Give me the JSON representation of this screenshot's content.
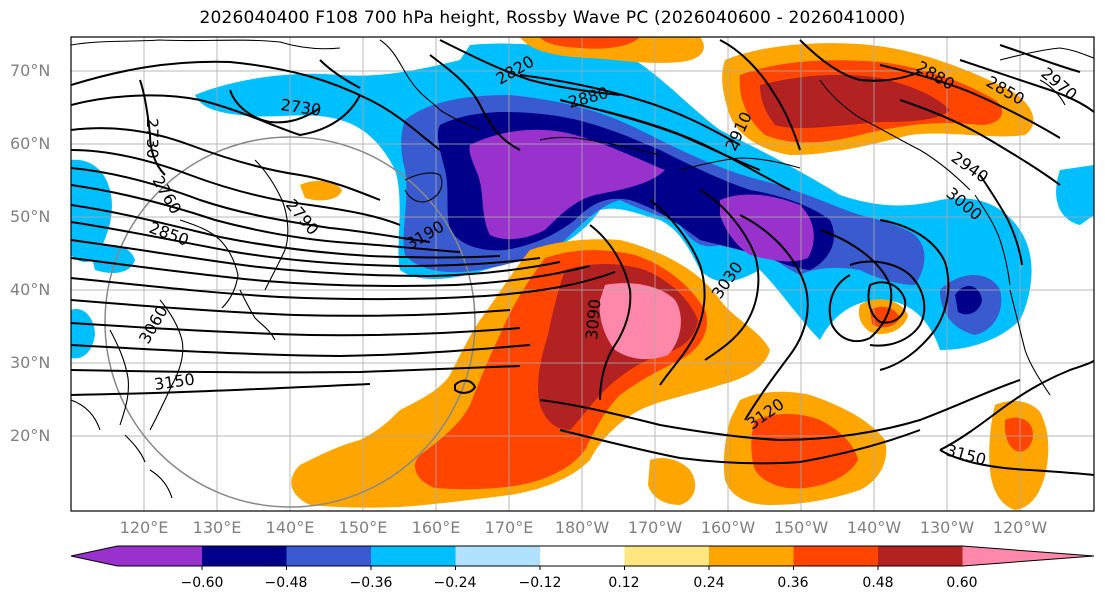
{
  "title": "2026040400 F108 700 hPa height, Rossby Wave PC (2026040600 - 2026041000)",
  "lat_labels": [
    "70°N",
    "60°N",
    "50°N",
    "40°N",
    "30°N",
    "20°N"
  ],
  "lon_labels": [
    "120°E",
    "130°E",
    "140°E",
    "150°E",
    "160°E",
    "170°E",
    "180°W",
    "170°W",
    "160°W",
    "150°W",
    "140°W",
    "130°W",
    "120°W"
  ],
  "contour_labels": [
    "2730",
    "2730",
    "2760",
    "2790",
    "2850",
    "2820",
    "2880",
    "2910",
    "2880",
    "2850",
    "2970",
    "2940",
    "3000",
    "3060",
    "3150",
    "3090",
    "3030",
    "3120",
    "3150",
    "3190"
  ],
  "colorbar": {
    "ticks": [
      "−0.60",
      "−0.48",
      "−0.36",
      "−0.24",
      "−0.12",
      "0.12",
      "0.24",
      "0.36",
      "0.48",
      "0.60"
    ],
    "colors": [
      "#9932cc",
      "#00008b",
      "#3a5bcf",
      "#00bfff",
      "#b0e2ff",
      "#ffffff",
      "#ffe680",
      "#ffa500",
      "#ff4500",
      "#b22222",
      "#ff88aa"
    ]
  }
}
